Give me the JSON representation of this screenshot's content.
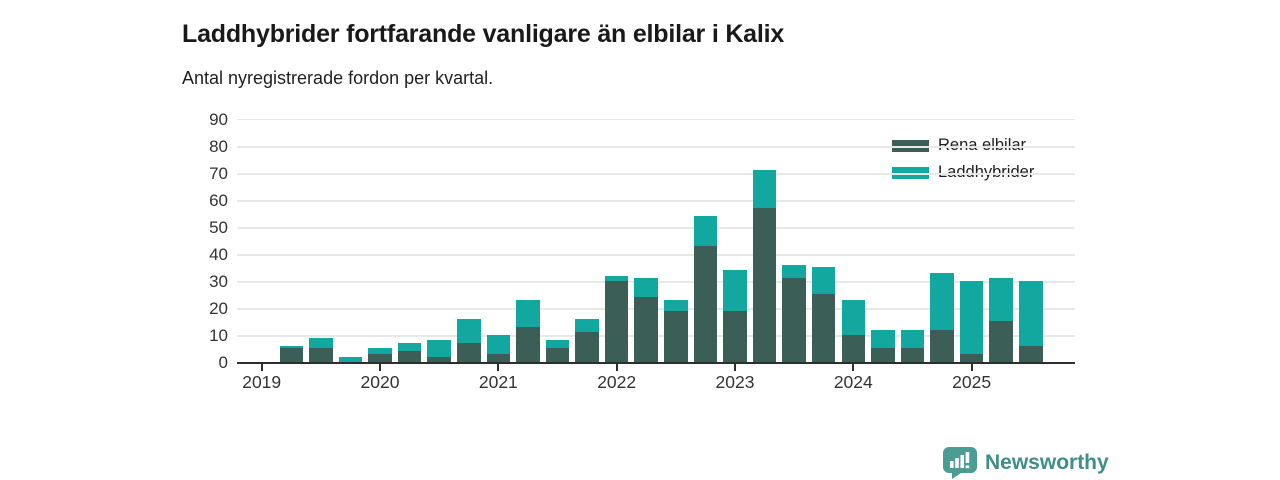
{
  "header": {
    "title": "Laddhybrider fortfarande vanligare än elbilar i Kalix",
    "subtitle": "Antal nyregistrerade fordon per kvartal."
  },
  "footer": {
    "brand": "Newsworthy"
  },
  "colors": {
    "rena_elbilar": "#3b5f57",
    "laddhybrider": "#12a8a0",
    "axis": "#2e2e2e",
    "grid": "#e8e8e6",
    "brand_teal": "#3f8e89",
    "logo_fill": "#4a9c95"
  },
  "chart_data": {
    "type": "bar",
    "stacked": true,
    "title": "Laddhybrider fortfarande vanligare än elbilar i Kalix",
    "subtitle": "Antal nyregistrerade fordon per kvartal.",
    "xlabel": "",
    "ylabel": "",
    "ylim": [
      0,
      90
    ],
    "y_ticks": [
      0,
      10,
      20,
      30,
      40,
      50,
      60,
      70,
      80,
      90
    ],
    "grid": true,
    "legend_position": "top-right",
    "categories": [
      "2019 Q1",
      "2019 Q2",
      "2019 Q3",
      "2019 Q4",
      "2020 Q1",
      "2020 Q2",
      "2020 Q3",
      "2020 Q4",
      "2021 Q1",
      "2021 Q2",
      "2021 Q3",
      "2021 Q4",
      "2022 Q1",
      "2022 Q2",
      "2022 Q3",
      "2022 Q4",
      "2023 Q1",
      "2023 Q2",
      "2023 Q3",
      "2023 Q4",
      "2024 Q1",
      "2024 Q2",
      "2024 Q3",
      "2024 Q4",
      "2025 Q1",
      "2025 Q2",
      "2025 Q3"
    ],
    "series": [
      {
        "name": "Rena elbilar",
        "color": "#3b5f57",
        "values": [
          0,
          5,
          5,
          0,
          3,
          4,
          2,
          7,
          3,
          13,
          5,
          11,
          30,
          24,
          19,
          43,
          19,
          57,
          31,
          25,
          10,
          5,
          5,
          12,
          3,
          15,
          6
        ]
      },
      {
        "name": "Laddhybrider",
        "color": "#12a8a0",
        "values": [
          0,
          1,
          4,
          2,
          2,
          3,
          6,
          9,
          7,
          10,
          3,
          5,
          2,
          7,
          4,
          11,
          15,
          14,
          5,
          10,
          13,
          7,
          7,
          21,
          27,
          16,
          24
        ]
      }
    ],
    "year_ticks": [
      {
        "label": "2019",
        "slot": 0
      },
      {
        "label": "2020",
        "slot": 4
      },
      {
        "label": "2021",
        "slot": 8
      },
      {
        "label": "2022",
        "slot": 12
      },
      {
        "label": "2023",
        "slot": 16
      },
      {
        "label": "2024",
        "slot": 20
      },
      {
        "label": "2025",
        "slot": 24
      }
    ]
  }
}
